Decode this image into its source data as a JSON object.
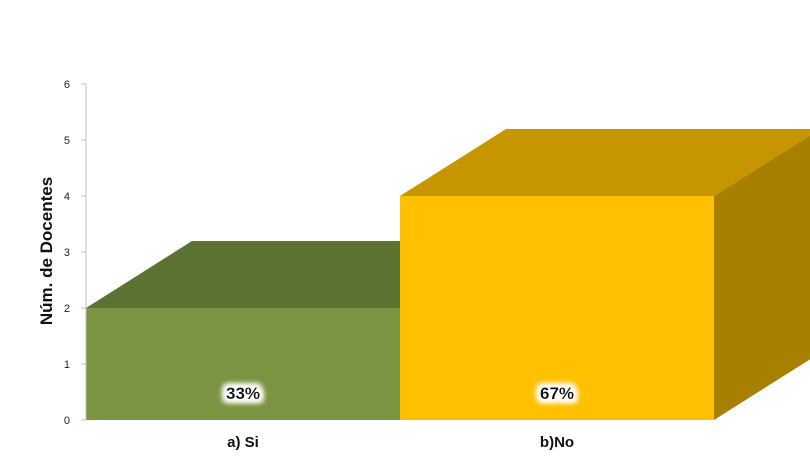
{
  "chart_data": {
    "type": "bar",
    "categories": [
      "a) Si",
      "b)No"
    ],
    "values": [
      2,
      4
    ],
    "data_labels": [
      "33%",
      "67%"
    ],
    "title": "",
    "xlabel": "",
    "ylabel": "Núm. de Docentes",
    "ylim": [
      0,
      6
    ],
    "yticks": [
      0,
      1,
      2,
      3,
      4,
      5,
      6
    ],
    "grid": false,
    "legend": "none",
    "three_d": true,
    "colors": {
      "bars": [
        {
          "front": "#7a9441",
          "top": "#5b7232",
          "side": "#4d622a"
        },
        {
          "front": "#ffc000",
          "top": "#c69500",
          "side": "#a88000"
        }
      ],
      "axis": "#bfbfbf"
    }
  }
}
